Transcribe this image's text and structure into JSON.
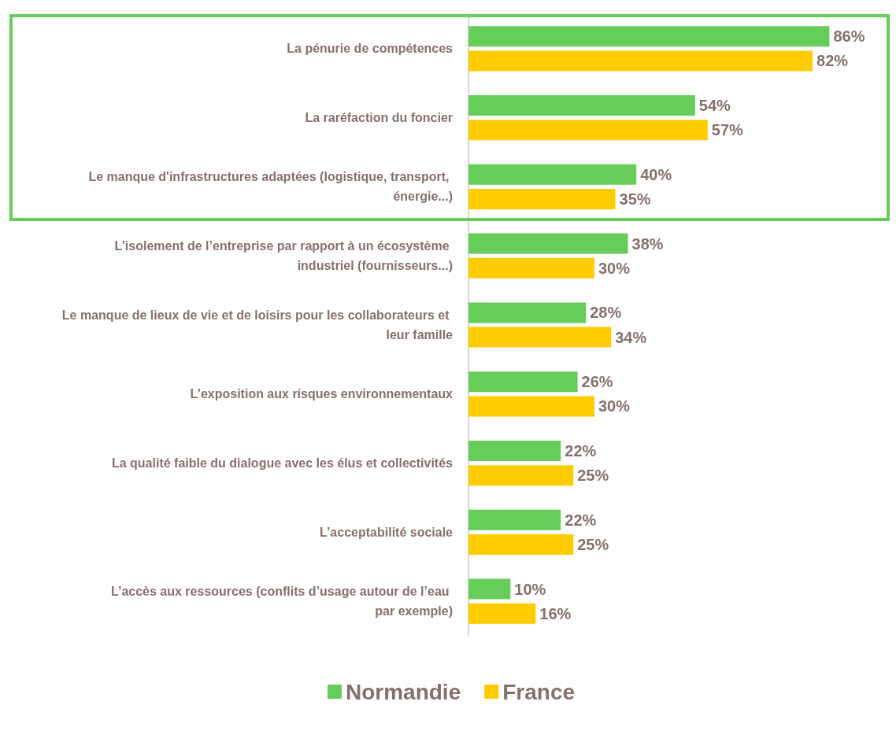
{
  "chart_data": {
    "type": "bar",
    "orientation": "horizontal",
    "categories": [
      "La pénurie de compétences",
      "La raréfaction du foncier",
      "Le manque d'infrastructures adaptées (logistique, transport, énergie...)",
      "L’isolement de l’entreprise par rapport à un écosystème industriel (fournisseurs...)",
      "Le manque de lieux de vie et de loisirs pour les collaborateurs et leur famille",
      "L’exposition aux risques environnementaux",
      "La qualité faible du dialogue avec les élus et collectivités",
      "L’acceptabilité sociale",
      "L’accès aux ressources (conflits d’usage autour de l’eau par exemple)"
    ],
    "series": [
      {
        "name": "Normandie",
        "color": "#66cc5a",
        "values": [
          86,
          54,
          40,
          38,
          28,
          26,
          22,
          22,
          10
        ],
        "value_labels": [
          "86%",
          "54%",
          "40%",
          "38%",
          "28%",
          "26%",
          "22%",
          "22%",
          "10%"
        ]
      },
      {
        "name": "France",
        "color": "#ffcc00",
        "values": [
          82,
          57,
          35,
          30,
          34,
          30,
          25,
          25,
          16
        ],
        "value_labels": [
          "82%",
          "57%",
          "35%",
          "30%",
          "34%",
          "30%",
          "25%",
          "25%",
          "16%"
        ]
      }
    ],
    "legend": "bottom",
    "grid": false
  }
}
